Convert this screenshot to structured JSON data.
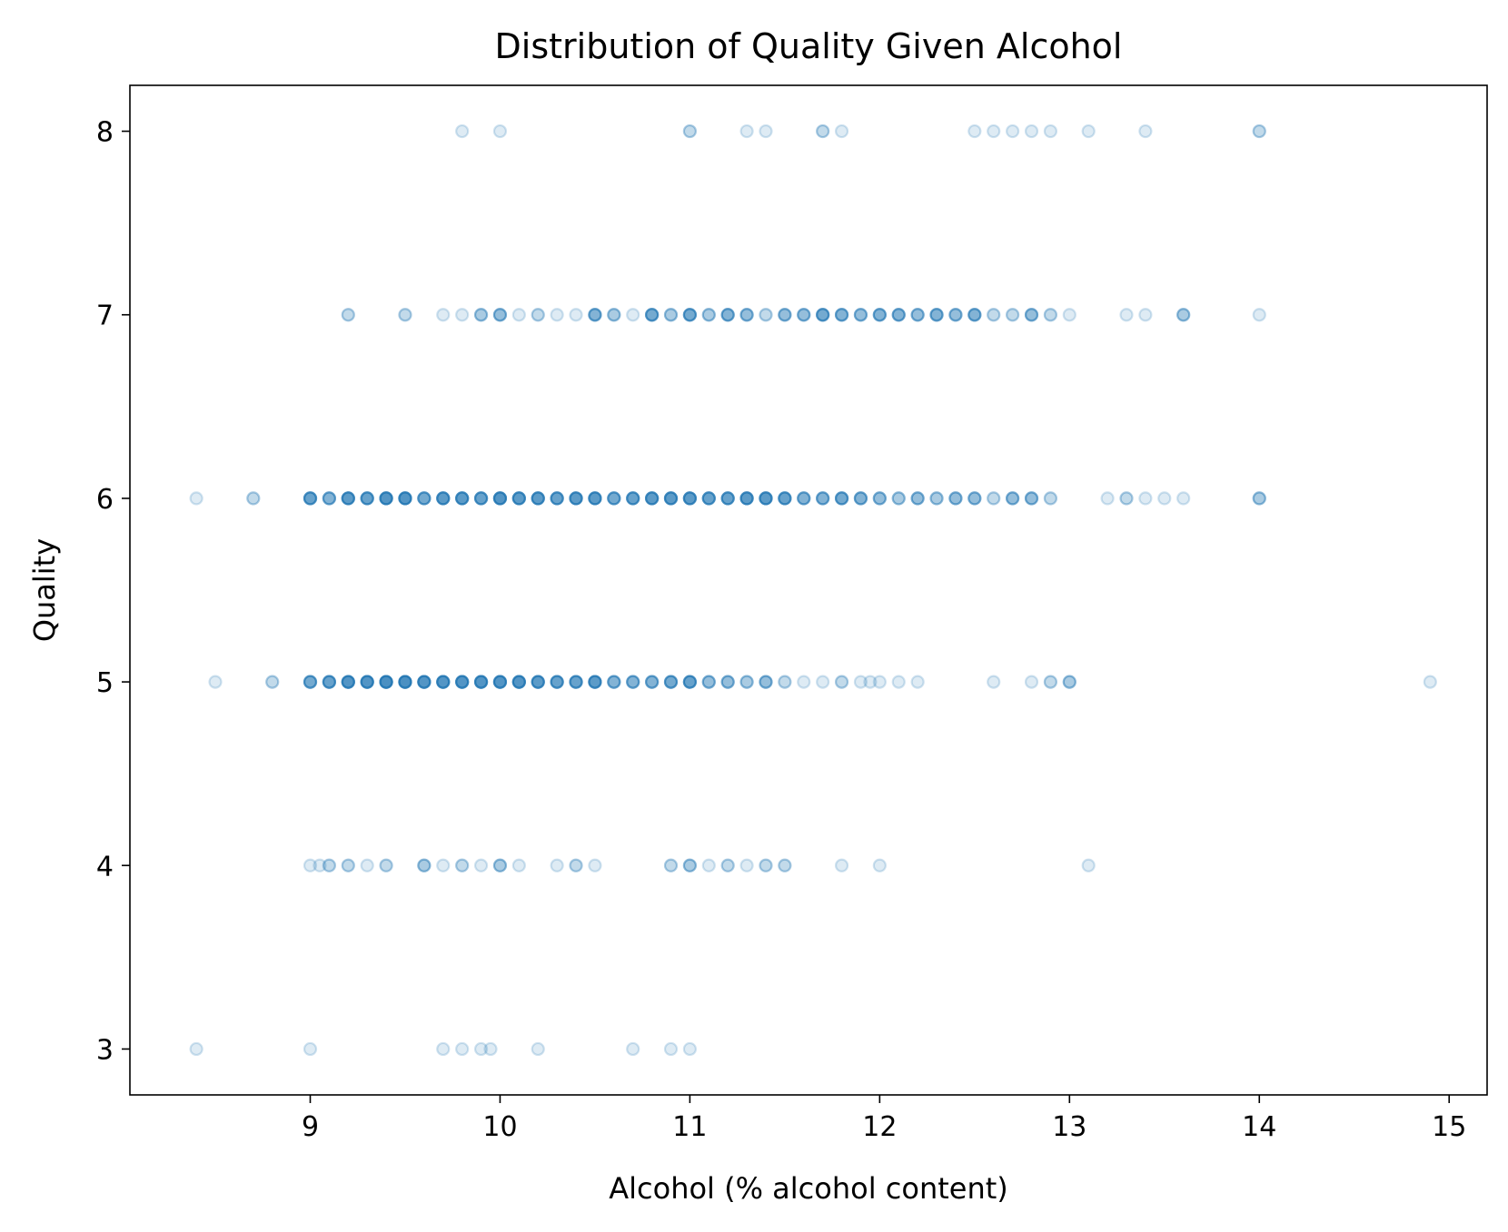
{
  "chart_data": {
    "type": "scatter",
    "title": "Distribution of Quality Given Alcohol",
    "xlabel": "Alcohol (% alcohol content)",
    "ylabel": "Quality",
    "xlim": [
      8.05,
      15.2
    ],
    "ylim": [
      2.75,
      8.25
    ],
    "xticks": [
      9,
      10,
      11,
      12,
      13,
      14,
      15
    ],
    "yticks": [
      3,
      4,
      5,
      6,
      7,
      8
    ],
    "grid": false,
    "point_color": "#1f77b4",
    "point_alpha": 0.15,
    "series": [
      {
        "points": [
          {
            "x": 9.8,
            "y": 8,
            "n": 1
          },
          {
            "x": 10.0,
            "y": 8,
            "n": 1
          },
          {
            "x": 11.0,
            "y": 8,
            "n": 2
          },
          {
            "x": 11.3,
            "y": 8,
            "n": 1
          },
          {
            "x": 11.4,
            "y": 8,
            "n": 1
          },
          {
            "x": 11.7,
            "y": 8,
            "n": 2
          },
          {
            "x": 11.8,
            "y": 8,
            "n": 1
          },
          {
            "x": 12.5,
            "y": 8,
            "n": 1
          },
          {
            "x": 12.6,
            "y": 8,
            "n": 1
          },
          {
            "x": 12.7,
            "y": 8,
            "n": 1
          },
          {
            "x": 12.8,
            "y": 8,
            "n": 1
          },
          {
            "x": 12.9,
            "y": 8,
            "n": 1
          },
          {
            "x": 13.1,
            "y": 8,
            "n": 1
          },
          {
            "x": 13.4,
            "y": 8,
            "n": 1
          },
          {
            "x": 14.0,
            "y": 8,
            "n": 2
          },
          {
            "x": 9.2,
            "y": 7,
            "n": 2
          },
          {
            "x": 9.5,
            "y": 7,
            "n": 2
          },
          {
            "x": 9.7,
            "y": 7,
            "n": 1
          },
          {
            "x": 9.8,
            "y": 7,
            "n": 1
          },
          {
            "x": 9.9,
            "y": 7,
            "n": 3
          },
          {
            "x": 10.0,
            "y": 7,
            "n": 4
          },
          {
            "x": 10.1,
            "y": 7,
            "n": 1
          },
          {
            "x": 10.2,
            "y": 7,
            "n": 2
          },
          {
            "x": 10.3,
            "y": 7,
            "n": 1
          },
          {
            "x": 10.4,
            "y": 7,
            "n": 1
          },
          {
            "x": 10.5,
            "y": 7,
            "n": 5
          },
          {
            "x": 10.6,
            "y": 7,
            "n": 3
          },
          {
            "x": 10.7,
            "y": 7,
            "n": 1
          },
          {
            "x": 10.8,
            "y": 7,
            "n": 6
          },
          {
            "x": 10.9,
            "y": 7,
            "n": 3
          },
          {
            "x": 11.0,
            "y": 7,
            "n": 6
          },
          {
            "x": 11.1,
            "y": 7,
            "n": 3
          },
          {
            "x": 11.2,
            "y": 7,
            "n": 5
          },
          {
            "x": 11.3,
            "y": 7,
            "n": 4
          },
          {
            "x": 11.4,
            "y": 7,
            "n": 2
          },
          {
            "x": 11.5,
            "y": 7,
            "n": 4
          },
          {
            "x": 11.6,
            "y": 7,
            "n": 4
          },
          {
            "x": 11.7,
            "y": 7,
            "n": 6
          },
          {
            "x": 11.8,
            "y": 7,
            "n": 5
          },
          {
            "x": 11.9,
            "y": 7,
            "n": 4
          },
          {
            "x": 12.0,
            "y": 7,
            "n": 5
          },
          {
            "x": 12.1,
            "y": 7,
            "n": 5
          },
          {
            "x": 12.2,
            "y": 7,
            "n": 4
          },
          {
            "x": 12.3,
            "y": 7,
            "n": 5
          },
          {
            "x": 12.4,
            "y": 7,
            "n": 4
          },
          {
            "x": 12.5,
            "y": 7,
            "n": 5
          },
          {
            "x": 12.6,
            "y": 7,
            "n": 2
          },
          {
            "x": 12.7,
            "y": 7,
            "n": 2
          },
          {
            "x": 12.8,
            "y": 7,
            "n": 4
          },
          {
            "x": 12.9,
            "y": 7,
            "n": 2
          },
          {
            "x": 13.0,
            "y": 7,
            "n": 1
          },
          {
            "x": 13.3,
            "y": 7,
            "n": 1
          },
          {
            "x": 13.4,
            "y": 7,
            "n": 1
          },
          {
            "x": 13.6,
            "y": 7,
            "n": 3
          },
          {
            "x": 14.0,
            "y": 7,
            "n": 1
          },
          {
            "x": 8.4,
            "y": 6,
            "n": 1
          },
          {
            "x": 8.7,
            "y": 6,
            "n": 2
          },
          {
            "x": 9.0,
            "y": 6,
            "n": 7
          },
          {
            "x": 9.1,
            "y": 6,
            "n": 5
          },
          {
            "x": 9.2,
            "y": 6,
            "n": 8
          },
          {
            "x": 9.3,
            "y": 6,
            "n": 7
          },
          {
            "x": 9.4,
            "y": 6,
            "n": 9
          },
          {
            "x": 9.5,
            "y": 6,
            "n": 9
          },
          {
            "x": 9.6,
            "y": 6,
            "n": 6
          },
          {
            "x": 9.7,
            "y": 6,
            "n": 8
          },
          {
            "x": 9.8,
            "y": 6,
            "n": 8
          },
          {
            "x": 9.9,
            "y": 6,
            "n": 7
          },
          {
            "x": 10.0,
            "y": 6,
            "n": 9
          },
          {
            "x": 10.1,
            "y": 6,
            "n": 8
          },
          {
            "x": 10.2,
            "y": 6,
            "n": 8
          },
          {
            "x": 10.3,
            "y": 6,
            "n": 7
          },
          {
            "x": 10.4,
            "y": 6,
            "n": 8
          },
          {
            "x": 10.5,
            "y": 6,
            "n": 8
          },
          {
            "x": 10.6,
            "y": 6,
            "n": 6
          },
          {
            "x": 10.7,
            "y": 6,
            "n": 7
          },
          {
            "x": 10.8,
            "y": 6,
            "n": 8
          },
          {
            "x": 10.9,
            "y": 6,
            "n": 8
          },
          {
            "x": 11.0,
            "y": 6,
            "n": 8
          },
          {
            "x": 11.1,
            "y": 6,
            "n": 7
          },
          {
            "x": 11.2,
            "y": 6,
            "n": 7
          },
          {
            "x": 11.3,
            "y": 6,
            "n": 8
          },
          {
            "x": 11.4,
            "y": 6,
            "n": 8
          },
          {
            "x": 11.5,
            "y": 6,
            "n": 7
          },
          {
            "x": 11.6,
            "y": 6,
            "n": 5
          },
          {
            "x": 11.7,
            "y": 6,
            "n": 5
          },
          {
            "x": 11.8,
            "y": 6,
            "n": 6
          },
          {
            "x": 11.9,
            "y": 6,
            "n": 5
          },
          {
            "x": 12.0,
            "y": 6,
            "n": 4
          },
          {
            "x": 12.1,
            "y": 6,
            "n": 3
          },
          {
            "x": 12.2,
            "y": 6,
            "n": 4
          },
          {
            "x": 12.3,
            "y": 6,
            "n": 3
          },
          {
            "x": 12.4,
            "y": 6,
            "n": 4
          },
          {
            "x": 12.5,
            "y": 6,
            "n": 4
          },
          {
            "x": 12.6,
            "y": 6,
            "n": 2
          },
          {
            "x": 12.7,
            "y": 6,
            "n": 4
          },
          {
            "x": 12.8,
            "y": 6,
            "n": 4
          },
          {
            "x": 12.9,
            "y": 6,
            "n": 2
          },
          {
            "x": 13.2,
            "y": 6,
            "n": 1
          },
          {
            "x": 13.3,
            "y": 6,
            "n": 2
          },
          {
            "x": 13.4,
            "y": 6,
            "n": 1
          },
          {
            "x": 13.5,
            "y": 6,
            "n": 1
          },
          {
            "x": 13.6,
            "y": 6,
            "n": 1
          },
          {
            "x": 14.0,
            "y": 6,
            "n": 3
          },
          {
            "x": 8.5,
            "y": 5,
            "n": 1
          },
          {
            "x": 8.8,
            "y": 5,
            "n": 2
          },
          {
            "x": 9.0,
            "y": 5,
            "n": 6
          },
          {
            "x": 9.1,
            "y": 5,
            "n": 7
          },
          {
            "x": 9.2,
            "y": 5,
            "n": 9
          },
          {
            "x": 9.3,
            "y": 5,
            "n": 9
          },
          {
            "x": 9.4,
            "y": 5,
            "n": 10
          },
          {
            "x": 9.5,
            "y": 5,
            "n": 10
          },
          {
            "x": 9.6,
            "y": 5,
            "n": 9
          },
          {
            "x": 9.7,
            "y": 5,
            "n": 9
          },
          {
            "x": 9.8,
            "y": 5,
            "n": 9
          },
          {
            "x": 9.9,
            "y": 5,
            "n": 9
          },
          {
            "x": 10.0,
            "y": 5,
            "n": 9
          },
          {
            "x": 10.1,
            "y": 5,
            "n": 9
          },
          {
            "x": 10.2,
            "y": 5,
            "n": 8
          },
          {
            "x": 10.3,
            "y": 5,
            "n": 7
          },
          {
            "x": 10.4,
            "y": 5,
            "n": 7
          },
          {
            "x": 10.5,
            "y": 5,
            "n": 8
          },
          {
            "x": 10.6,
            "y": 5,
            "n": 5
          },
          {
            "x": 10.7,
            "y": 5,
            "n": 5
          },
          {
            "x": 10.8,
            "y": 5,
            "n": 5
          },
          {
            "x": 10.9,
            "y": 5,
            "n": 6
          },
          {
            "x": 11.0,
            "y": 5,
            "n": 7
          },
          {
            "x": 11.1,
            "y": 5,
            "n": 4
          },
          {
            "x": 11.2,
            "y": 5,
            "n": 4
          },
          {
            "x": 11.3,
            "y": 5,
            "n": 3
          },
          {
            "x": 11.4,
            "y": 5,
            "n": 4
          },
          {
            "x": 11.5,
            "y": 5,
            "n": 2
          },
          {
            "x": 11.6,
            "y": 5,
            "n": 1
          },
          {
            "x": 11.7,
            "y": 5,
            "n": 1
          },
          {
            "x": 11.8,
            "y": 5,
            "n": 2
          },
          {
            "x": 11.9,
            "y": 5,
            "n": 1
          },
          {
            "x": 11.95,
            "y": 5,
            "n": 1
          },
          {
            "x": 12.0,
            "y": 5,
            "n": 1
          },
          {
            "x": 12.1,
            "y": 5,
            "n": 1
          },
          {
            "x": 12.2,
            "y": 5,
            "n": 1
          },
          {
            "x": 12.6,
            "y": 5,
            "n": 1
          },
          {
            "x": 12.8,
            "y": 5,
            "n": 1
          },
          {
            "x": 12.9,
            "y": 5,
            "n": 2
          },
          {
            "x": 13.0,
            "y": 5,
            "n": 3
          },
          {
            "x": 14.9,
            "y": 5,
            "n": 1
          },
          {
            "x": 9.0,
            "y": 4,
            "n": 1
          },
          {
            "x": 9.05,
            "y": 4,
            "n": 1
          },
          {
            "x": 9.1,
            "y": 4,
            "n": 2
          },
          {
            "x": 9.2,
            "y": 4,
            "n": 2
          },
          {
            "x": 9.3,
            "y": 4,
            "n": 1
          },
          {
            "x": 9.4,
            "y": 4,
            "n": 2
          },
          {
            "x": 9.6,
            "y": 4,
            "n": 3
          },
          {
            "x": 9.7,
            "y": 4,
            "n": 1
          },
          {
            "x": 9.8,
            "y": 4,
            "n": 2
          },
          {
            "x": 9.9,
            "y": 4,
            "n": 1
          },
          {
            "x": 10.0,
            "y": 4,
            "n": 3
          },
          {
            "x": 10.1,
            "y": 4,
            "n": 1
          },
          {
            "x": 10.3,
            "y": 4,
            "n": 1
          },
          {
            "x": 10.4,
            "y": 4,
            "n": 2
          },
          {
            "x": 10.5,
            "y": 4,
            "n": 1
          },
          {
            "x": 10.9,
            "y": 4,
            "n": 2
          },
          {
            "x": 11.0,
            "y": 4,
            "n": 3
          },
          {
            "x": 11.1,
            "y": 4,
            "n": 1
          },
          {
            "x": 11.2,
            "y": 4,
            "n": 2
          },
          {
            "x": 11.3,
            "y": 4,
            "n": 1
          },
          {
            "x": 11.4,
            "y": 4,
            "n": 2
          },
          {
            "x": 11.5,
            "y": 4,
            "n": 2
          },
          {
            "x": 11.8,
            "y": 4,
            "n": 1
          },
          {
            "x": 12.0,
            "y": 4,
            "n": 1
          },
          {
            "x": 13.1,
            "y": 4,
            "n": 1
          },
          {
            "x": 8.4,
            "y": 3,
            "n": 1
          },
          {
            "x": 9.0,
            "y": 3,
            "n": 1
          },
          {
            "x": 9.7,
            "y": 3,
            "n": 1
          },
          {
            "x": 9.8,
            "y": 3,
            "n": 1
          },
          {
            "x": 9.9,
            "y": 3,
            "n": 1
          },
          {
            "x": 9.95,
            "y": 3,
            "n": 1
          },
          {
            "x": 10.2,
            "y": 3,
            "n": 1
          },
          {
            "x": 10.7,
            "y": 3,
            "n": 1
          },
          {
            "x": 10.9,
            "y": 3,
            "n": 1
          },
          {
            "x": 11.0,
            "y": 3,
            "n": 1
          }
        ]
      }
    ]
  }
}
